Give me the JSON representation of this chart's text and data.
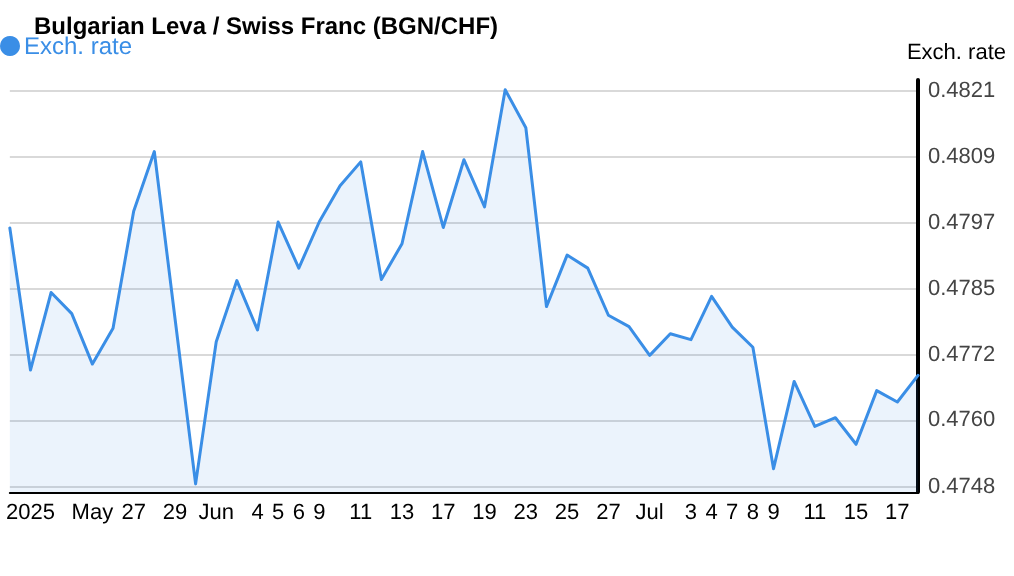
{
  "chart_data": {
    "type": "area",
    "title": "Bulgarian Leva / Swiss Franc (BGN/CHF)",
    "ylabel": "Exch. rate",
    "categories": [
      null,
      "2025",
      null,
      null,
      "May",
      null,
      "27",
      null,
      "29",
      null,
      "Jun",
      null,
      "4",
      "5",
      "6",
      "9",
      null,
      "11",
      null,
      "13",
      null,
      "17",
      null,
      "19",
      null,
      "23",
      null,
      "25",
      null,
      "27",
      null,
      "Jul",
      null,
      "3",
      "4",
      "7",
      "8",
      "9",
      null,
      "11",
      null,
      "15",
      null,
      "17",
      null
    ],
    "series": [
      {
        "name": "Exch. rate",
        "color": "#3a8ee6",
        "values": [
          0.47957,
          0.47695,
          0.47838,
          0.47799,
          0.47706,
          0.47772,
          0.47988,
          0.48098,
          0.47791,
          0.47485,
          0.47747,
          0.4786,
          0.47769,
          0.47968,
          0.47883,
          0.47969,
          0.48035,
          0.48079,
          0.47862,
          0.47928,
          0.48098,
          0.47958,
          0.48083,
          0.47996,
          0.48212,
          0.48142,
          0.47812,
          0.47907,
          0.47883,
          0.47796,
          0.47775,
          0.47722,
          0.47762,
          0.47751,
          0.47831,
          0.47774,
          0.47737,
          0.47513,
          0.47674,
          0.47591,
          0.47607,
          0.47558,
          0.47657,
          0.47636,
          0.47685
        ]
      }
    ],
    "ylim": [
      0.4747,
      0.4823
    ],
    "yticks": [
      {
        "value": 0.4748,
        "label": "0.4748"
      },
      {
        "value": 0.47602,
        "label": "0.4760"
      },
      {
        "value": 0.47723,
        "label": "0.4772"
      },
      {
        "value": 0.47845,
        "label": "0.4785"
      },
      {
        "value": 0.47967,
        "label": "0.4797"
      },
      {
        "value": 0.48088,
        "label": "0.4809"
      },
      {
        "value": 0.4821,
        "label": "0.4821"
      }
    ],
    "grid": "y",
    "legend": "top left",
    "marker": "none",
    "line_style": "solid"
  }
}
